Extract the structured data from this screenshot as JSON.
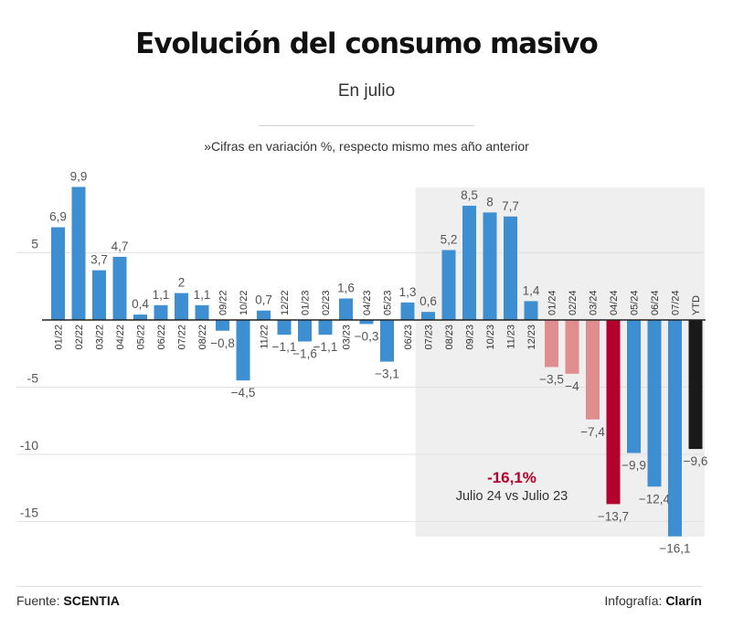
{
  "header": {
    "title": "Evolución del consumo masivo",
    "subtitle": "En julio",
    "note": "»Cifras en variación %, respecto mismo mes año anterior"
  },
  "footer": {
    "source_label": "Fuente:",
    "source_name": "SCENTIA",
    "credit_label": "Infografía:",
    "credit_name": "Clarín"
  },
  "chart_data": {
    "type": "bar",
    "categories": [
      "01/22",
      "02/22",
      "03/22",
      "04/22",
      "05/22",
      "06/22",
      "07/22",
      "08/22",
      "09/22",
      "10/22",
      "11/22",
      "12/22",
      "01/23",
      "02/23",
      "03/23",
      "04/23",
      "05/23",
      "06/23",
      "07/23",
      "08/23",
      "09/23",
      "10/23",
      "11/23",
      "12/23",
      "01/24",
      "02/24",
      "03/24",
      "04/24",
      "05/24",
      "06/24",
      "07/24",
      "YTD"
    ],
    "values": [
      6.9,
      9.9,
      3.7,
      4.7,
      0.4,
      1.1,
      2,
      1.1,
      -0.8,
      -4.5,
      0.7,
      -1.1,
      -1.6,
      -1.1,
      1.6,
      -0.3,
      -3.1,
      1.3,
      0.6,
      5.2,
      8.5,
      8,
      7.7,
      1.4,
      -3.5,
      -4,
      -7.4,
      -13.7,
      -9.9,
      -12.4,
      -16.1,
      -9.6
    ],
    "value_labels": [
      "6,9",
      "9,9",
      "3,7",
      "4,7",
      "0,4",
      "1,1",
      "2",
      "1,1",
      "−0,8",
      "−4,5",
      "0,7",
      "−1,1",
      "−1,6",
      "−1,1",
      "1,6",
      "−0,3",
      "−3,1",
      "1,3",
      "0,6",
      "5,2",
      "8,5",
      "8",
      "7,7",
      "1,4",
      "−3,5",
      "−4",
      "−7,4",
      "−13,7",
      "−9,9",
      "−12,4",
      "−16,1",
      "−9,6"
    ],
    "bar_colors": [
      "#3d8fd1",
      "#3d8fd1",
      "#3d8fd1",
      "#3d8fd1",
      "#3d8fd1",
      "#3d8fd1",
      "#3d8fd1",
      "#3d8fd1",
      "#3d8fd1",
      "#3d8fd1",
      "#3d8fd1",
      "#3d8fd1",
      "#3d8fd1",
      "#3d8fd1",
      "#3d8fd1",
      "#3d8fd1",
      "#3d8fd1",
      "#3d8fd1",
      "#3d8fd1",
      "#3d8fd1",
      "#3d8fd1",
      "#3d8fd1",
      "#3d8fd1",
      "#3d8fd1",
      "#e08d8f",
      "#e08d8f",
      "#e08d8f",
      "#b3002d",
      "#3d8fd1",
      "#3d8fd1",
      "#3d8fd1",
      "#1a1a1a"
    ],
    "y_ticks": [
      5,
      -5,
      -10,
      -15
    ],
    "y_tick_labels": [
      "5",
      "-5",
      "-10",
      "-15"
    ],
    "ylim": [
      -17.2,
      11
    ],
    "highlight": {
      "from": "07/23",
      "to": "YTD",
      "color": "#efefef"
    },
    "annotation": {
      "value": "-16,1%",
      "text": "Julio 24 vs Julio 23",
      "value_color": "#b3002d"
    },
    "grid": true,
    "legend": "none"
  }
}
